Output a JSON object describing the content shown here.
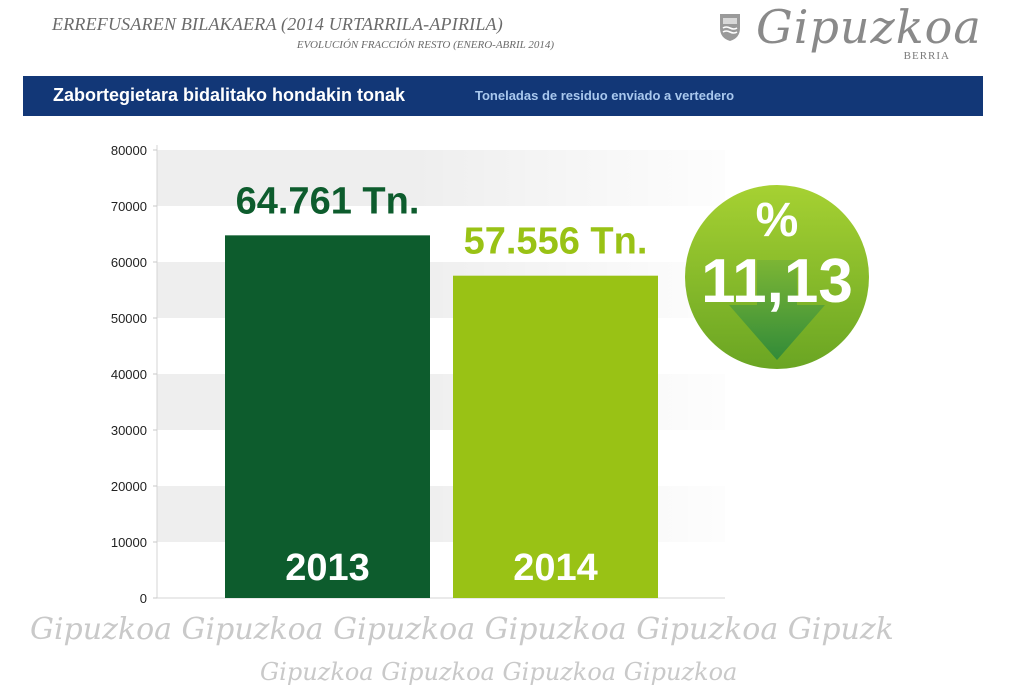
{
  "header": {
    "title": "ERREFUSAREN BILAKAERA (2014 URTARRILA-APIRILA)",
    "subtitle": "EVOLUCIÓN FRACCIÓN RESTO (ENERO-ABRIL 2014)"
  },
  "logo": {
    "name": "Gipuzkoa",
    "suffix": "BERRIA"
  },
  "banner": {
    "main": "Zabortegietara bidalitako hondakin tonak",
    "sub": "Toneladas de residuo enviado a vertedero"
  },
  "chart_data": {
    "type": "bar",
    "categories": [
      "2013",
      "2014"
    ],
    "values": [
      64761,
      57556
    ],
    "data_labels": [
      "64.761 Tn.",
      "57.556 Tn."
    ],
    "bar_colors": [
      "#0d5c2d",
      "#99c215"
    ],
    "label_colors": [
      "#0d5c2d",
      "#99c215"
    ],
    "ylim": [
      0,
      80000
    ],
    "yticks": [
      0,
      10000,
      20000,
      30000,
      40000,
      50000,
      60000,
      70000,
      80000
    ],
    "grid": "alternating bands",
    "badge": {
      "symbol": "%",
      "value": "11,13",
      "direction": "down",
      "color": "#7fb72a"
    }
  },
  "watermark": {
    "line1": "Gipuzkoa Gipuzkoa Gipuzkoa Gipuzkoa Gipuzkoa Gipuzk",
    "line2": "Gipuzkoa Gipuzkoa Gipuzkoa Gipuzkoa"
  }
}
